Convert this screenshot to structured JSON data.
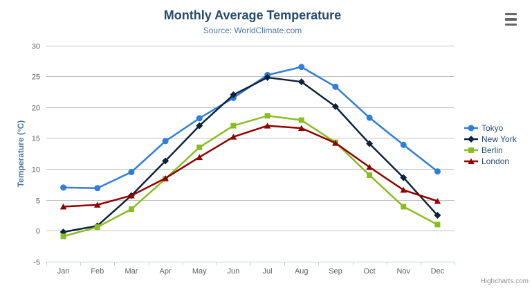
{
  "chart_data": {
    "type": "line",
    "title": "Monthly Average Temperature",
    "subtitle": "Source: WorldClimate.com",
    "xlabel": "",
    "ylabel": "Temperature (°C)",
    "categories": [
      "Jan",
      "Feb",
      "Mar",
      "Apr",
      "May",
      "Jun",
      "Jul",
      "Aug",
      "Sep",
      "Oct",
      "Nov",
      "Dec"
    ],
    "yticks": [
      -5,
      0,
      5,
      10,
      15,
      20,
      25,
      30
    ],
    "ylim": [
      -5,
      30
    ],
    "grid": true,
    "legend_position": "right",
    "credits": "Highcharts.com",
    "series": [
      {
        "name": "Tokyo",
        "color": "#2f7ed8",
        "marker": "circle",
        "values": [
          7.0,
          6.9,
          9.5,
          14.5,
          18.2,
          21.5,
          25.2,
          26.5,
          23.3,
          18.3,
          13.9,
          9.6
        ]
      },
      {
        "name": "New York",
        "color": "#0d233a",
        "marker": "diamond",
        "values": [
          -0.2,
          0.8,
          5.7,
          11.3,
          17.0,
          22.0,
          24.8,
          24.1,
          20.1,
          14.1,
          8.6,
          2.5
        ]
      },
      {
        "name": "Berlin",
        "color": "#8bbc21",
        "marker": "square",
        "values": [
          -0.9,
          0.6,
          3.5,
          8.4,
          13.5,
          17.0,
          18.6,
          17.9,
          14.3,
          9.0,
          3.9,
          1.0
        ]
      },
      {
        "name": "London",
        "color": "#910000",
        "marker": "triangle",
        "values": [
          3.9,
          4.2,
          5.7,
          8.5,
          11.9,
          15.2,
          17.0,
          16.6,
          14.2,
          10.3,
          6.6,
          4.8
        ]
      }
    ],
    "axis_colors": {
      "gridline": "#c0c0c0",
      "axis_line": "#c0d0e0",
      "tick": "#c0d0e0"
    }
  }
}
